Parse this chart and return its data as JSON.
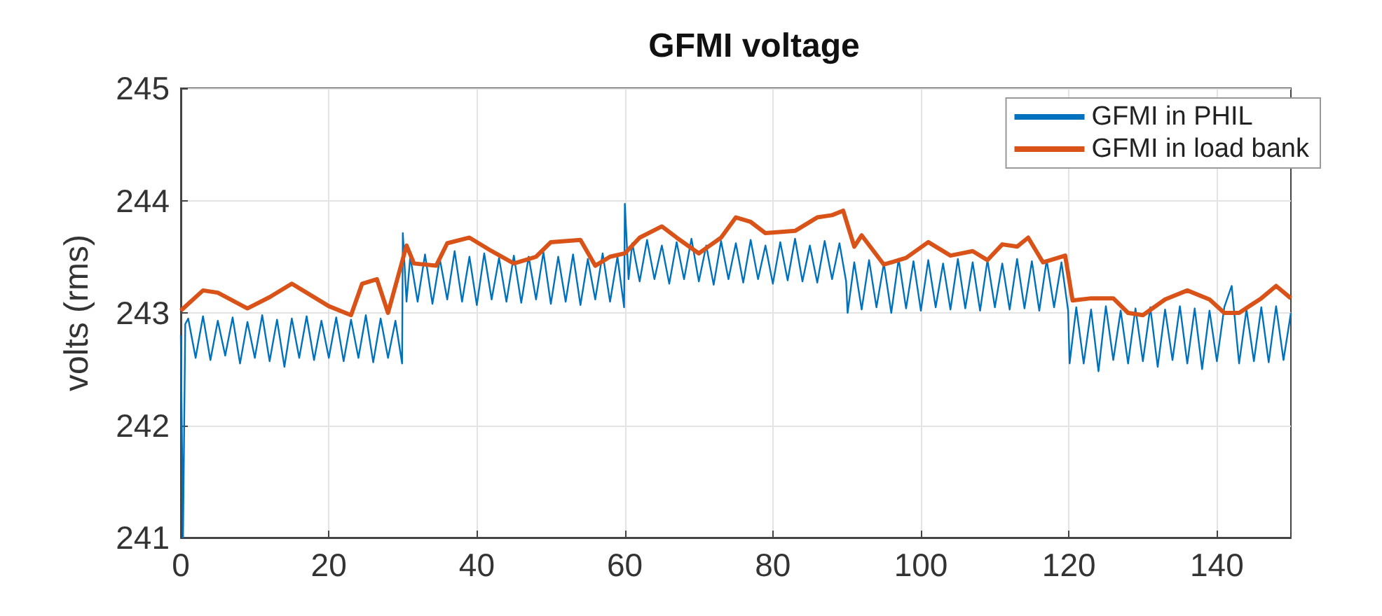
{
  "chart_data": {
    "type": "line",
    "title": "GFMI voltage",
    "ylabel": "volts (rms)",
    "xlim": [
      0,
      150
    ],
    "xticks": [
      0,
      20,
      40,
      60,
      80,
      100,
      120,
      140
    ],
    "ylim": [
      241,
      245
    ],
    "yticks": [
      241,
      242,
      243,
      244,
      245
    ],
    "grid": true,
    "legend": "top right",
    "series": [
      {
        "name": "GFMI in PHIL",
        "color": "#0072bd",
        "x": [
          0,
          0.3,
          0.6,
          1,
          2,
          3,
          4,
          5,
          6,
          7,
          8,
          9,
          10,
          11,
          12,
          13,
          14,
          15,
          16,
          17,
          18,
          19,
          20,
          21,
          22,
          23,
          24,
          25,
          26,
          27,
          28,
          29,
          29.9,
          30,
          30.5,
          31,
          32,
          33,
          34,
          35,
          36,
          37,
          38,
          39,
          40,
          41,
          42,
          43,
          44,
          45,
          46,
          47,
          48,
          49,
          50,
          51,
          52,
          53,
          54,
          55,
          56,
          57,
          58,
          59,
          59.9,
          60,
          60.5,
          61,
          62,
          63,
          64,
          65,
          66,
          67,
          68,
          69,
          70,
          71,
          72,
          73,
          74,
          75,
          76,
          77,
          78,
          79,
          80,
          81,
          82,
          83,
          84,
          85,
          86,
          87,
          88,
          89,
          89.9,
          90.1,
          91,
          92,
          93,
          94,
          95,
          96,
          97,
          98,
          99,
          100,
          101,
          102,
          103,
          104,
          105,
          106,
          107,
          108,
          109,
          110,
          111,
          112,
          113,
          114,
          115,
          116,
          117,
          118,
          119,
          119.9,
          120.1,
          121,
          122,
          123,
          124,
          125,
          126,
          127,
          128,
          129,
          130,
          131,
          132,
          133,
          134,
          135,
          136,
          137,
          138,
          139,
          140,
          141,
          142,
          143,
          144,
          145,
          146,
          147,
          148,
          149,
          150
        ],
        "values": [
          242.8,
          241.0,
          242.9,
          242.95,
          242.6,
          242.97,
          242.58,
          242.93,
          242.62,
          242.96,
          242.55,
          242.92,
          242.6,
          242.98,
          242.57,
          242.94,
          242.52,
          242.95,
          242.6,
          242.97,
          242.58,
          242.93,
          242.6,
          242.96,
          242.57,
          242.94,
          242.6,
          242.98,
          242.56,
          242.95,
          242.6,
          242.93,
          242.55,
          243.71,
          243.1,
          243.5,
          243.1,
          243.52,
          243.08,
          243.48,
          243.12,
          243.55,
          243.1,
          243.5,
          243.07,
          243.53,
          243.12,
          243.49,
          243.1,
          243.51,
          243.09,
          243.5,
          243.12,
          243.54,
          243.08,
          243.5,
          243.1,
          243.52,
          243.07,
          243.48,
          243.12,
          243.53,
          243.1,
          243.5,
          243.05,
          243.97,
          243.3,
          243.62,
          243.28,
          243.65,
          243.3,
          243.6,
          243.26,
          243.63,
          243.3,
          243.66,
          243.28,
          243.6,
          243.25,
          243.64,
          243.3,
          243.62,
          243.27,
          243.65,
          243.3,
          243.6,
          243.26,
          243.63,
          243.29,
          243.66,
          243.28,
          243.6,
          243.27,
          243.64,
          243.3,
          243.62,
          243.28,
          243.0,
          243.45,
          243.03,
          243.47,
          243.05,
          243.44,
          243.0,
          243.48,
          243.04,
          243.46,
          243.02,
          243.47,
          243.05,
          243.44,
          243.03,
          243.48,
          243.04,
          243.45,
          243.02,
          243.47,
          243.05,
          243.44,
          243.03,
          243.48,
          243.04,
          243.46,
          243.02,
          243.47,
          243.05,
          243.45,
          243.02,
          242.55,
          243.05,
          242.55,
          243.03,
          242.48,
          243.06,
          242.58,
          243.02,
          242.55,
          243.04,
          242.57,
          243.05,
          242.52,
          243.03,
          242.58,
          243.06,
          242.55,
          243.04,
          242.5,
          243.02,
          242.57,
          243.05,
          243.24,
          242.55,
          243.03,
          242.57,
          243.05,
          242.56,
          243.06,
          242.58,
          243.0
        ]
      },
      {
        "name": "GFMI in load bank",
        "color": "#d95319",
        "x": [
          0,
          3,
          5,
          9,
          12,
          15,
          17,
          20,
          23,
          24.5,
          26.5,
          28,
          30.5,
          31.5,
          34.5,
          36,
          39,
          42,
          45,
          48,
          50,
          54,
          56,
          58,
          60,
          62,
          65,
          67,
          70,
          73,
          75,
          77,
          79,
          83,
          86,
          88,
          89.5,
          91,
          92,
          95,
          98,
          101,
          104,
          107,
          109,
          111,
          113,
          114.5,
          116.5,
          119.5,
          120.5,
          123,
          126,
          128,
          130,
          133,
          136,
          139,
          141,
          143,
          146,
          148,
          150
        ],
        "values": [
          243.02,
          243.2,
          243.18,
          243.04,
          243.14,
          243.26,
          243.18,
          243.06,
          242.98,
          243.26,
          243.3,
          243.0,
          243.6,
          243.44,
          243.42,
          243.62,
          243.67,
          243.55,
          243.44,
          243.5,
          243.63,
          243.65,
          243.42,
          243.5,
          243.53,
          243.67,
          243.77,
          243.67,
          243.53,
          243.67,
          243.85,
          243.81,
          243.71,
          243.73,
          243.85,
          243.87,
          243.91,
          243.59,
          243.69,
          243.43,
          243.49,
          243.63,
          243.51,
          243.55,
          243.47,
          243.61,
          243.59,
          243.67,
          243.45,
          243.51,
          243.11,
          243.13,
          243.13,
          243.0,
          242.98,
          243.12,
          243.2,
          243.12,
          243.0,
          243.0,
          243.13,
          243.24,
          243.13
        ]
      }
    ]
  }
}
